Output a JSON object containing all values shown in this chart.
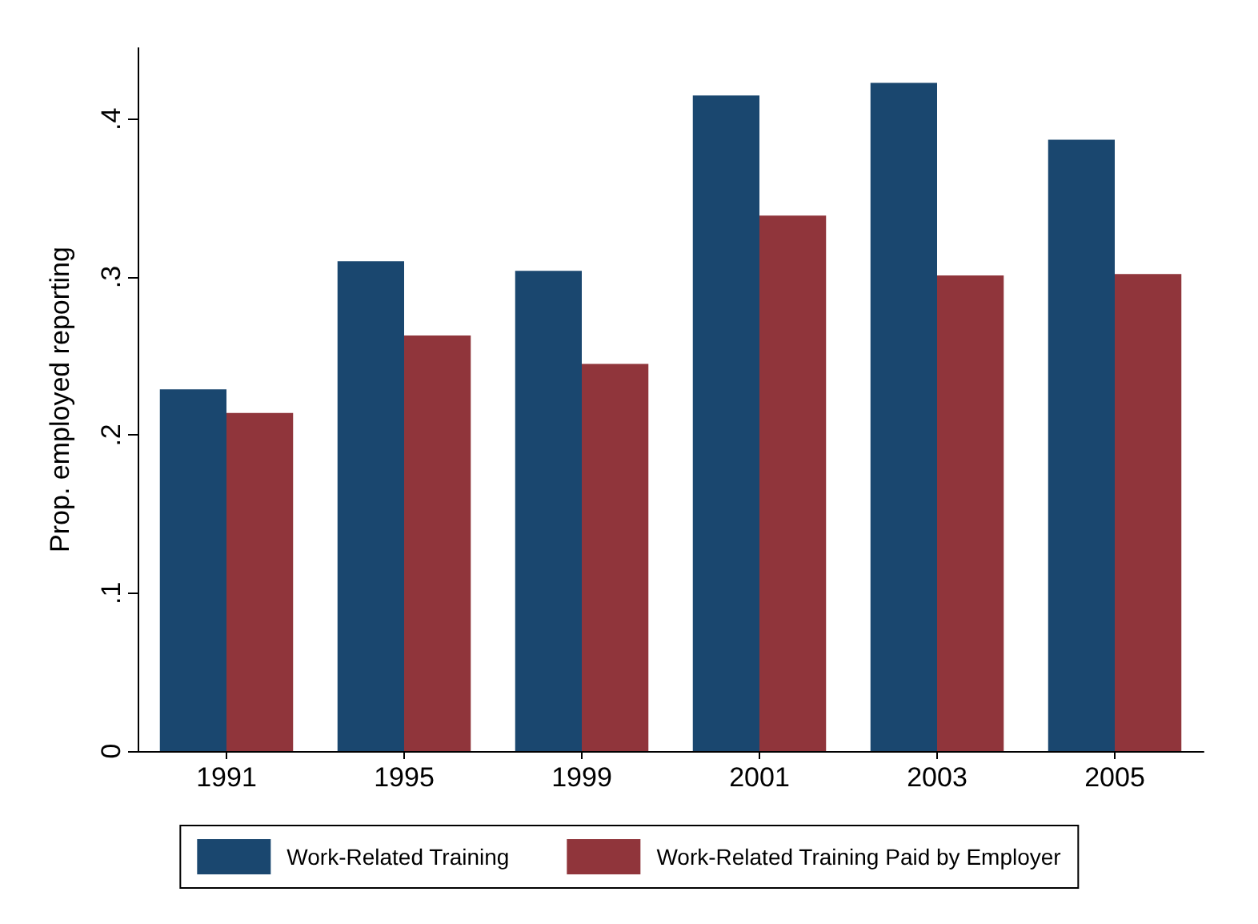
{
  "chart_data": {
    "type": "bar",
    "ylabel": "Prop. employed reporting",
    "categories": [
      "1991",
      "1995",
      "1999",
      "2001",
      "2003",
      "2005"
    ],
    "series": [
      {
        "name": "Work-Related Training",
        "color": "#1a476f",
        "values": [
          0.229,
          0.31,
          0.304,
          0.415,
          0.423,
          0.387
        ]
      },
      {
        "name": "Work-Related Training Paid by Employer",
        "color": "#90353b",
        "values": [
          0.214,
          0.263,
          0.245,
          0.339,
          0.301,
          0.302
        ]
      }
    ],
    "ylim": [
      0,
      0.445
    ],
    "yticks": [
      0,
      {
        "value": 0.1,
        "label": ".1"
      },
      {
        "value": 0.2,
        "label": ".2"
      },
      {
        "value": 0.3,
        "label": ".3"
      },
      {
        "value": 0.4,
        "label": ".4"
      }
    ],
    "grid": false,
    "legend": "bottom"
  }
}
